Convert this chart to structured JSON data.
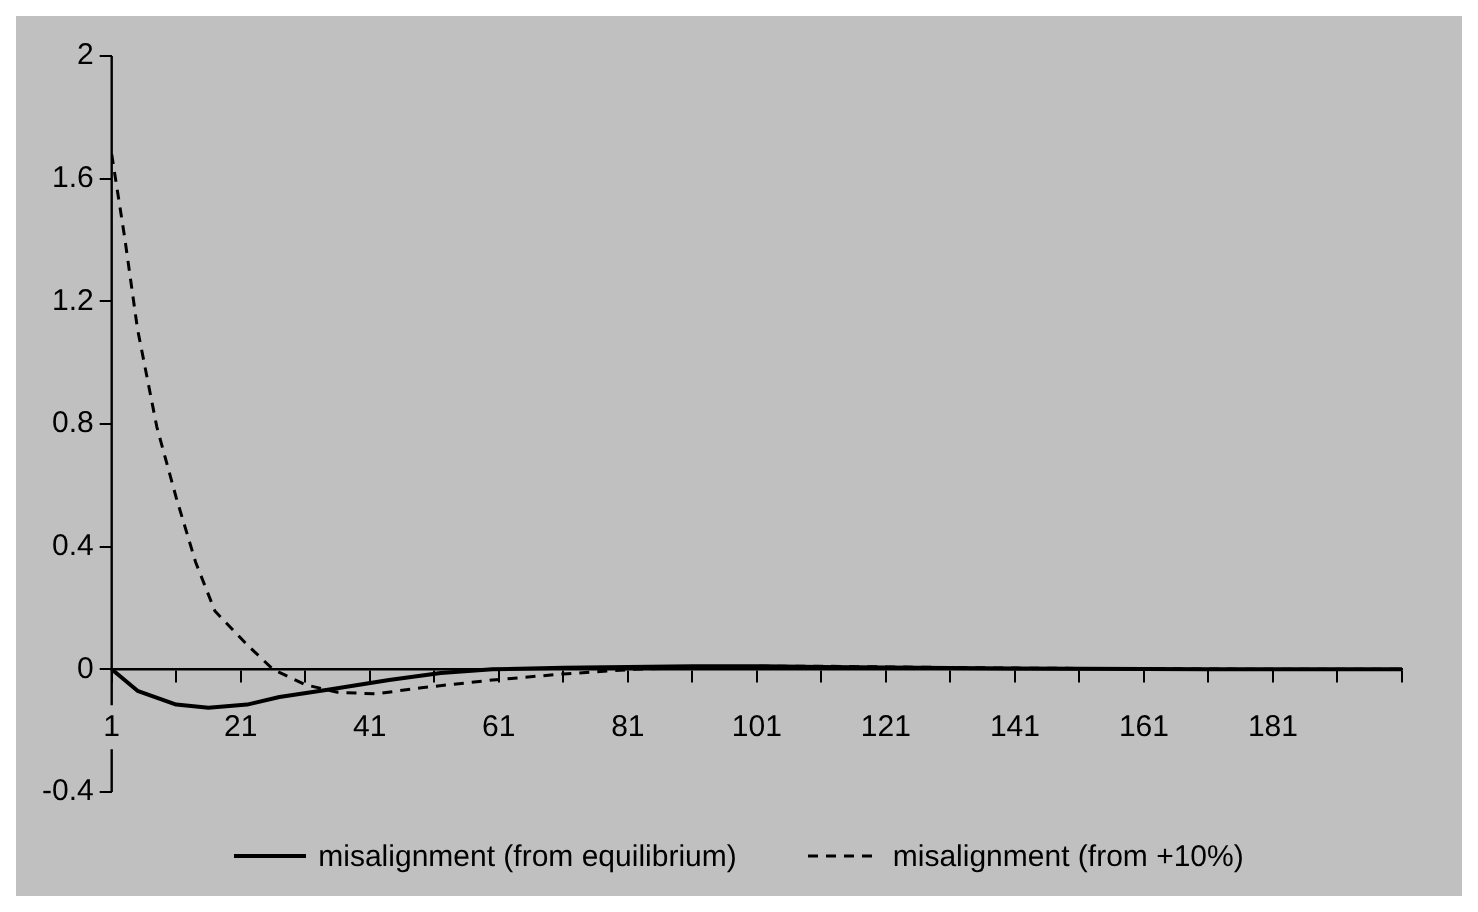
{
  "chart_data": {
    "type": "line",
    "legend": "bottom",
    "grid": false,
    "marker": "none",
    "xlim": [
      1,
      201
    ],
    "xticks": [
      1,
      {
        "value": 11,
        "label": null
      },
      21,
      {
        "value": 31,
        "label": null
      },
      41,
      {
        "value": 51,
        "label": null
      },
      61,
      {
        "value": 71,
        "label": null
      },
      81,
      {
        "value": 91,
        "label": null
      },
      101,
      {
        "value": 111,
        "label": null
      },
      121,
      {
        "value": 131,
        "label": null
      },
      141,
      {
        "value": 151,
        "label": null
      },
      161,
      {
        "value": 171,
        "label": null
      },
      181,
      {
        "value": 191,
        "label": null
      },
      {
        "value": 201,
        "label": null
      }
    ],
    "ylim": [
      -0.4,
      2
    ],
    "yticks": [
      -0.4,
      0,
      0.4,
      0.8,
      1.2,
      1.6,
      2
    ],
    "series": [
      {
        "name": "misalignment (from equilibrium)",
        "color": "#000000",
        "line_style": "solid",
        "x": [
          1,
          5,
          11,
          16,
          22,
          27,
          35,
          44,
          52,
          60,
          71,
          81,
          91,
          101,
          111,
          121,
          131,
          141,
          151,
          161,
          171,
          181,
          191,
          201
        ],
        "values": [
          0,
          -0.07,
          -0.115,
          -0.125,
          -0.115,
          -0.09,
          -0.065,
          -0.035,
          -0.012,
          0,
          0.005,
          0.008,
          0.01,
          0.01,
          0.008,
          0.006,
          0.004,
          0.003,
          0.002,
          0.001,
          0,
          0,
          0,
          0
        ]
      },
      {
        "name": "misalignment (from +10%)",
        "color": "#000000",
        "line_style": "dashed",
        "x": [
          1,
          3,
          5,
          8,
          11,
          14,
          17,
          22,
          26,
          31,
          36,
          42,
          49,
          60,
          71,
          82,
          91,
          101,
          111,
          121,
          131,
          141,
          151,
          161,
          171,
          181,
          191,
          201
        ],
        "values": [
          1.68,
          1.41,
          1.11,
          0.79,
          0.56,
          0.35,
          0.19,
          0.08,
          0,
          -0.05,
          -0.075,
          -0.08,
          -0.06,
          -0.035,
          -0.015,
          0,
          0.006,
          0.01,
          0.01,
          0.008,
          0.006,
          0.004,
          0.003,
          0.002,
          0.001,
          0,
          0,
          0
        ]
      }
    ]
  }
}
